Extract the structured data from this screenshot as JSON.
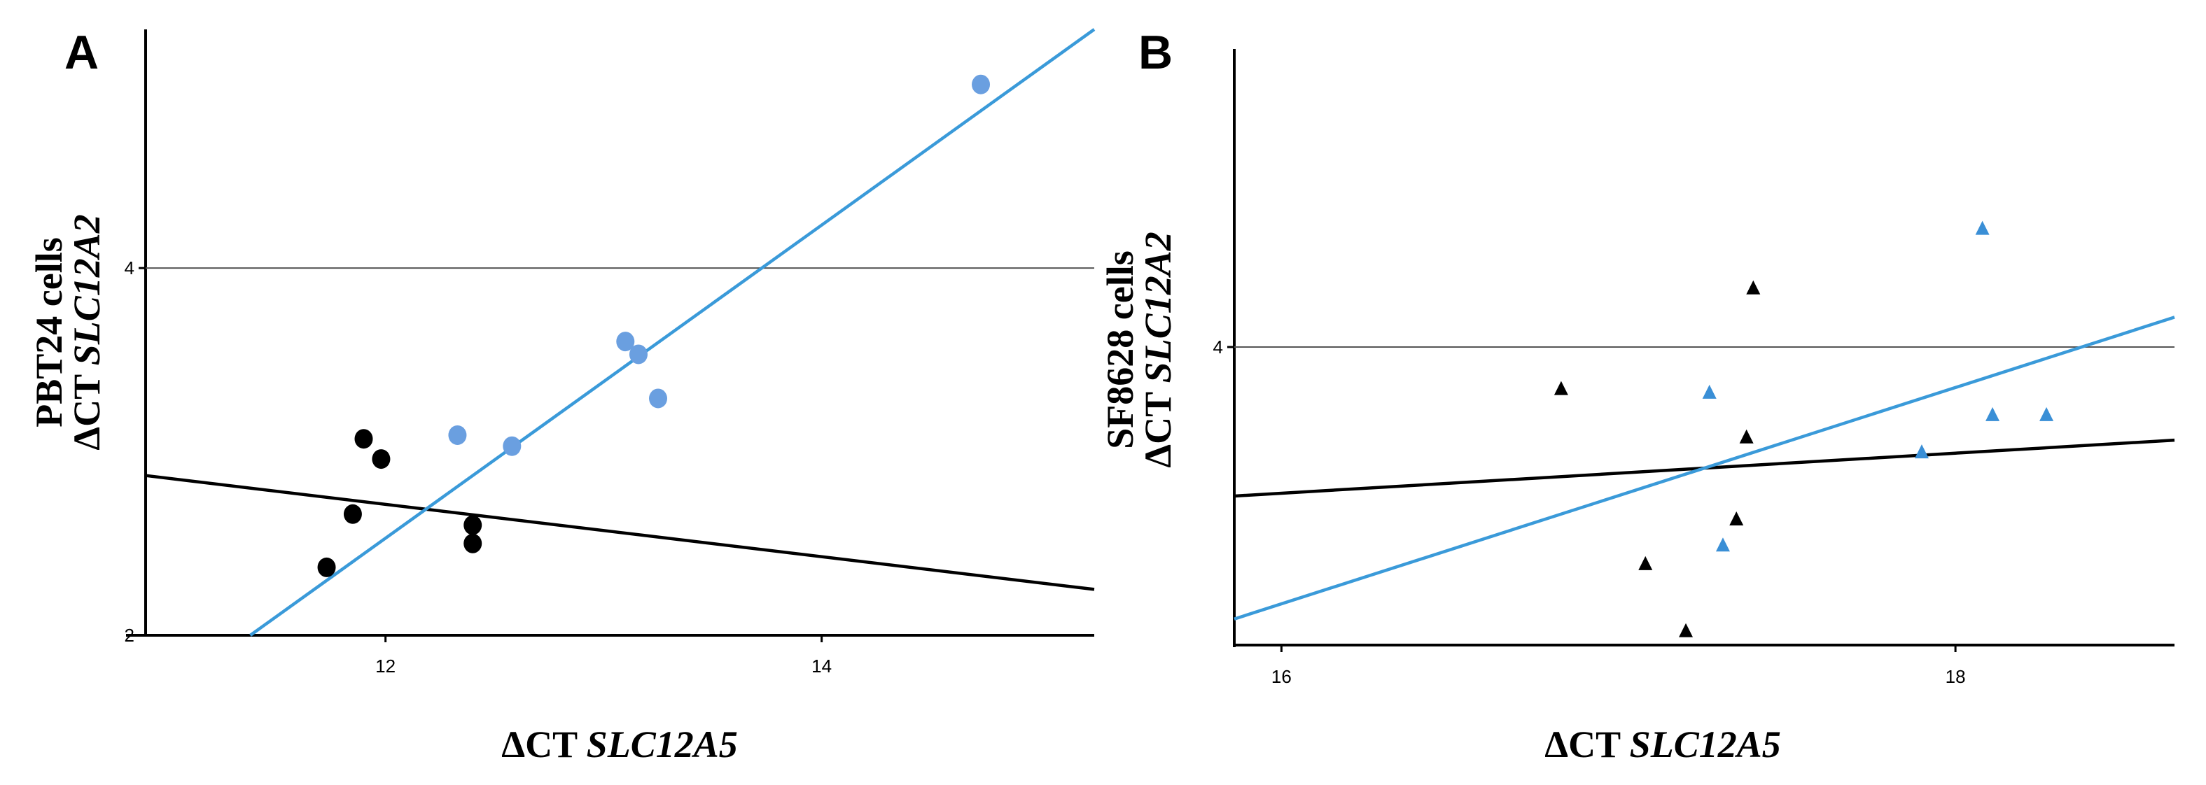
{
  "chart_data": [
    {
      "panel": "A",
      "type": "scatter",
      "xlabel_prefix": "ΔCT ",
      "xlabel_gene": "SLC12A5",
      "ylabel_line1": "PBT24  cells",
      "ylabel_prefix": "ΔCT ",
      "ylabel_gene": "SLC12A2",
      "xlim": [
        10.9,
        15.25
      ],
      "ylim": [
        2.0,
        5.3
      ],
      "xticks": [
        12,
        14
      ],
      "yticks": [
        2,
        4
      ],
      "reference_line_y": 4,
      "marker": "circle",
      "colors": {
        "black": "#000000",
        "blue": "#6a9fe0",
        "blue_line": "#3a9ad9"
      },
      "series": [
        {
          "color": "black",
          "x": [
            11.73,
            11.85,
            11.9,
            11.98,
            12.4,
            12.4
          ],
          "y": [
            2.37,
            2.66,
            3.07,
            2.96,
            2.6,
            2.5
          ],
          "fit": [
            [
              10.9,
              2.87
            ],
            [
              15.25,
              2.25
            ]
          ]
        },
        {
          "color": "blue",
          "x": [
            12.33,
            12.58,
            13.1,
            13.16,
            13.25,
            14.73
          ],
          "y": [
            3.09,
            3.03,
            3.6,
            3.53,
            3.29,
            5.0
          ],
          "fit": [
            [
              11.38,
              2.0
            ],
            [
              15.25,
              5.3
            ]
          ]
        }
      ]
    },
    {
      "panel": "B",
      "type": "scatter",
      "xlabel_prefix": "ΔCT ",
      "xlabel_gene": "SLC12A5",
      "ylabel_line1": "SF8628 cells",
      "ylabel_prefix": "ΔCT ",
      "ylabel_gene": "SLC12A2",
      "xlim": [
        15.86,
        18.65
      ],
      "ylim": [
        3.2,
        4.8
      ],
      "xticks": [
        16,
        18
      ],
      "yticks": [
        4
      ],
      "reference_line_y": 4,
      "marker": "triangle",
      "colors": {
        "black": "#000000",
        "blue": "#3a8fd6",
        "blue_line": "#3a9ad9"
      },
      "series": [
        {
          "color": "black",
          "x": [
            16.83,
            17.08,
            17.2,
            17.35,
            17.38,
            17.4
          ],
          "y": [
            3.89,
            3.42,
            3.24,
            3.54,
            3.76,
            4.16
          ],
          "fit": [
            [
              15.86,
              3.6
            ],
            [
              18.65,
              3.75
            ]
          ]
        },
        {
          "color": "blue",
          "x": [
            17.27,
            17.31,
            17.9,
            18.08,
            18.11,
            18.27
          ],
          "y": [
            3.88,
            3.47,
            3.72,
            4.32,
            3.82,
            3.82
          ],
          "fit": [
            [
              15.86,
              3.27
            ],
            [
              18.65,
              4.08
            ]
          ]
        }
      ]
    }
  ]
}
